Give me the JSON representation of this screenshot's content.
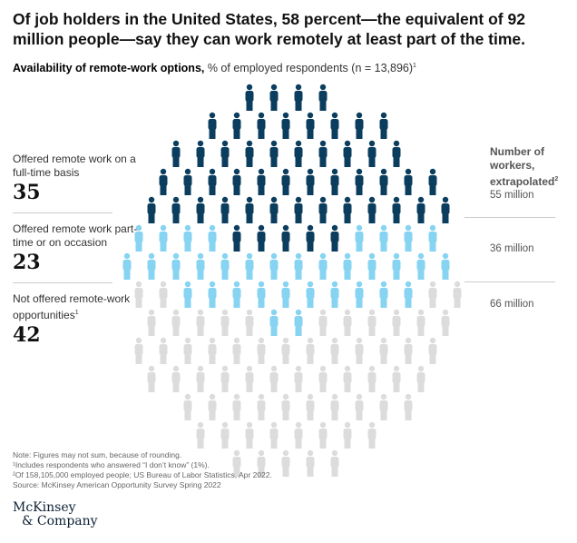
{
  "title": "Of job holders in the United States, 58 percent—the equivalent of 92 million people—say they can work remotely at least part of the time.",
  "subtitle": {
    "bold": "Availability of remote-work options,",
    "rest": " % of employed respondents (n = 13,896)",
    "sup": "1"
  },
  "right_header": {
    "text": "Number of workers, extrapolated",
    "sup": "2"
  },
  "chart_data": {
    "type": "pie",
    "unit": "% of employed respondents",
    "categories": [
      "Offered remote work on a full-time basis",
      "Offered remote work part-time or on occasion",
      "Not offered remote-work opportunities"
    ],
    "values": [
      35,
      23,
      42
    ],
    "workers": [
      "55 million",
      "36 million",
      "66 million"
    ],
    "colors": [
      "#0b3d5e",
      "#86d3f2",
      "#dcdcdc"
    ],
    "label_sups": [
      "",
      "",
      "1"
    ]
  },
  "notes": [
    "Note: Figures may not sum, because of rounding.",
    "¹Includes respondents who answered “I don’t know” (1%).",
    "²Of 158,105,000 employed people; US Bureau of Labor Statistics, Apr 2022.",
    "Source: McKinsey American Opportunity Survey Spring 2022"
  ],
  "logo": {
    "line1": "McKinsey",
    "line2": "& Company"
  }
}
